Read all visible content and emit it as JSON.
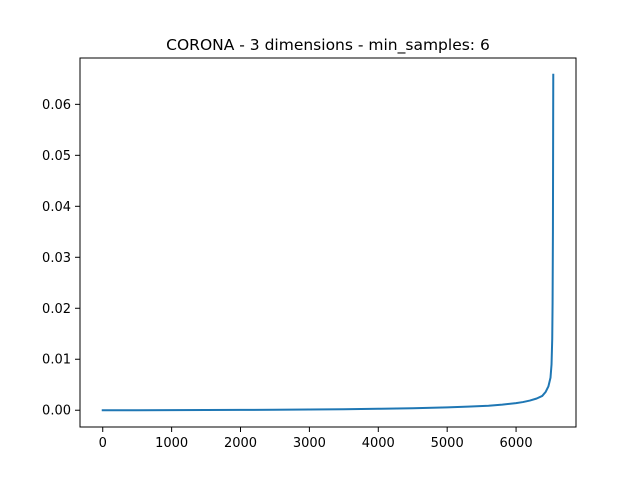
{
  "chart_data": {
    "type": "line",
    "title": "CORONA - 3 dimensions - min_samples: 6",
    "xlabel": "",
    "ylabel": "",
    "xlim": [
      -330,
      6870
    ],
    "ylim": [
      -0.00329,
      0.06909
    ],
    "x_ticks": [
      0,
      1000,
      2000,
      3000,
      4000,
      5000,
      6000
    ],
    "x_tick_labels": [
      "0",
      "1000",
      "2000",
      "3000",
      "4000",
      "5000",
      "6000"
    ],
    "y_ticks": [
      0.0,
      0.01,
      0.02,
      0.03,
      0.04,
      0.05,
      0.06
    ],
    "y_tick_labels": [
      "0.00",
      "0.01",
      "0.02",
      "0.03",
      "0.04",
      "0.05",
      "0.06"
    ],
    "grid": false,
    "line_color": "#1f77b4",
    "series": [
      {
        "x": [
          0,
          500,
          1000,
          1500,
          2000,
          2500,
          3000,
          3500,
          4000,
          4500,
          5000,
          5300,
          5600,
          5800,
          6000,
          6100,
          6200,
          6300,
          6380,
          6430,
          6470,
          6500,
          6515,
          6525,
          6530,
          6535,
          6540
        ],
        "y": [
          0.0,
          0.0,
          2e-05,
          4e-05,
          6e-05,
          0.0001,
          0.00014,
          0.0002,
          0.00028,
          0.0004,
          0.00055,
          0.0007,
          0.00088,
          0.0011,
          0.0014,
          0.0016,
          0.0019,
          0.0023,
          0.0028,
          0.0036,
          0.0047,
          0.0064,
          0.009,
          0.014,
          0.021,
          0.035,
          0.0658
        ]
      }
    ]
  }
}
